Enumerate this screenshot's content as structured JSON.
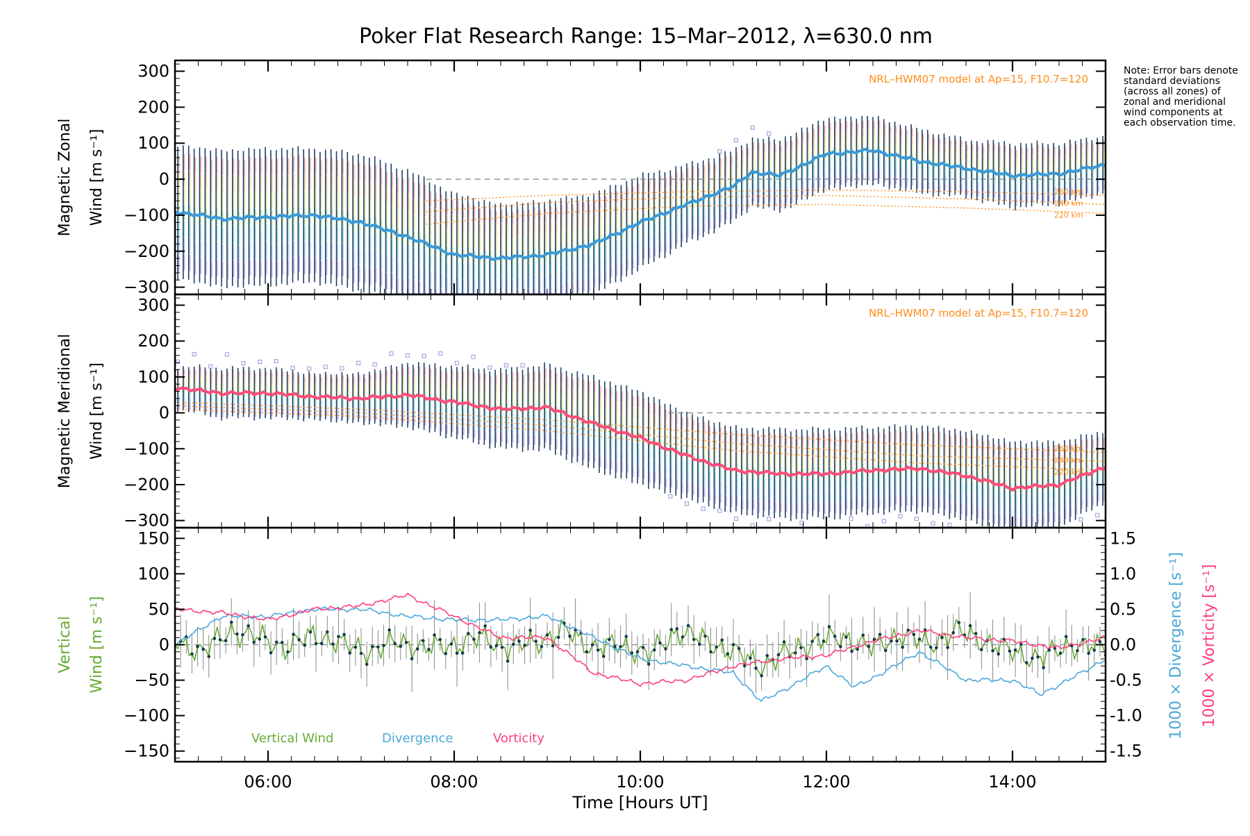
{
  "title": "Poker Flat Research Range: 15–Mar–2012, λ=630.0 nm",
  "note": "Note: Error bars denote standard deviations (across all zones) of zonal and meridional wind components at each observation time.",
  "colors": {
    "zonal_mean": "#3a9ad9",
    "meridional_mean": "#ff4d7a",
    "vertical": "#66aa33",
    "divergence": "#4aa7d9",
    "vorticity": "#ff3d7f",
    "model": "#ff8c1a",
    "errorbar": "#1f3d66",
    "outlier": "#a9a4dd"
  },
  "chart_data": [
    {
      "type": "line",
      "panel": "zonal",
      "ylabel_line1": "Magnetic Zonal",
      "ylabel_line2": "Wind [m s⁻¹]",
      "ylim": [
        -320,
        330
      ],
      "yticks": [
        300,
        200,
        100,
        0,
        -100,
        -200,
        -300
      ],
      "xlim": [
        5.0,
        15.0
      ],
      "model_label": "NRL–HWM07 model at Ap=15, F10.7=120",
      "model_alt_labels": [
        "260 km",
        "240 km",
        "220 km"
      ],
      "zero_line_from": 7.7,
      "series": [
        {
          "label": "mean",
          "x": [
            5.0,
            5.5,
            6.0,
            6.5,
            7.0,
            7.5,
            8.0,
            8.5,
            9.0,
            9.5,
            10.0,
            10.5,
            11.0,
            11.2,
            11.5,
            12.0,
            12.5,
            13.0,
            13.5,
            14.0,
            14.5,
            15.0
          ],
          "values": [
            -90,
            -110,
            -105,
            -100,
            -120,
            -160,
            -210,
            -220,
            -210,
            -180,
            -120,
            -70,
            -20,
            20,
            10,
            70,
            80,
            50,
            30,
            10,
            15,
            40
          ],
          "std": [
            185,
            190,
            190,
            185,
            190,
            185,
            170,
            150,
            150,
            140,
            130,
            110,
            100,
            95,
            100,
            100,
            95,
            90,
            80,
            90,
            85,
            80
          ]
        }
      ],
      "models": [
        {
          "alt": "260 km",
          "x": [
            7.7,
            9.0,
            10.5,
            12.0,
            13.5,
            15.0
          ],
          "values": [
            -60,
            -45,
            -35,
            -30,
            -35,
            -45
          ]
        },
        {
          "alt": "240 km",
          "x": [
            7.7,
            9.0,
            10.5,
            12.0,
            13.5,
            15.0
          ],
          "values": [
            -90,
            -65,
            -50,
            -45,
            -55,
            -70
          ]
        },
        {
          "alt": "220 km",
          "x": [
            7.7,
            9.0,
            10.5,
            12.0,
            13.5,
            15.0
          ],
          "values": [
            -125,
            -95,
            -75,
            -70,
            -80,
            -95
          ]
        }
      ]
    },
    {
      "type": "line",
      "panel": "meridional",
      "ylabel_line1": "Magnetic Meridional",
      "ylabel_line2": "Wind [m s⁻¹]",
      "ylim": [
        -320,
        330
      ],
      "yticks": [
        300,
        200,
        100,
        0,
        -100,
        -200,
        -300
      ],
      "xlim": [
        5.0,
        15.0
      ],
      "model_label": "NRL–HWM07 model at Ap=15, F10.7=120",
      "model_alt_labels": [
        "260 km",
        "240 km",
        "220 km"
      ],
      "zero_line_from": 10.3,
      "series": [
        {
          "label": "mean",
          "x": [
            5.0,
            5.5,
            6.0,
            6.5,
            7.0,
            7.5,
            8.0,
            8.5,
            9.0,
            9.5,
            10.0,
            10.5,
            11.0,
            11.5,
            12.0,
            12.5,
            13.0,
            13.5,
            14.0,
            14.5,
            15.0
          ],
          "values": [
            70,
            55,
            55,
            45,
            40,
            50,
            30,
            10,
            15,
            -30,
            -70,
            -120,
            -160,
            -170,
            -170,
            -160,
            -155,
            -175,
            -210,
            -200,
            -150
          ],
          "std": [
            60,
            70,
            70,
            65,
            70,
            90,
            100,
            110,
            120,
            130,
            130,
            120,
            120,
            125,
            125,
            120,
            120,
            125,
            130,
            120,
            100
          ]
        }
      ],
      "models": [
        {
          "alt": "260 km",
          "x": [
            5.0,
            7.0,
            9.0,
            11.0,
            13.0,
            15.0
          ],
          "values": [
            30,
            10,
            -20,
            -60,
            -90,
            -110
          ]
        },
        {
          "alt": "240 km",
          "x": [
            5.0,
            7.0,
            9.0,
            11.0,
            13.0,
            15.0
          ],
          "values": [
            20,
            0,
            -35,
            -85,
            -120,
            -135
          ]
        },
        {
          "alt": "220 km",
          "x": [
            5.0,
            7.0,
            9.0,
            11.0,
            13.0,
            15.0
          ],
          "values": [
            10,
            -10,
            -50,
            -105,
            -140,
            -160
          ]
        }
      ]
    },
    {
      "type": "line",
      "panel": "vertical",
      "ylabel_line1": "Vertical",
      "ylabel_line2": "Wind [m s⁻¹]",
      "ylabel_right_div": "1000 × Divergence [s⁻¹]",
      "ylabel_right_vort": "1000 × Vorticity [s⁻¹]",
      "ylim": [
        -165,
        165
      ],
      "yticks": [
        150,
        100,
        50,
        0,
        -50,
        -100,
        -150
      ],
      "y2lim": [
        -1.65,
        1.65
      ],
      "y2ticks": [
        1.5,
        1.0,
        0.5,
        0.0,
        -0.5,
        -1.0,
        -1.5
      ],
      "xlim": [
        5.0,
        15.0
      ],
      "xticks": [
        6,
        8,
        10,
        12,
        14
      ],
      "xticklabels": [
        "06:00",
        "08:00",
        "10:00",
        "12:00",
        "14:00"
      ],
      "xlabel": "Time [Hours UT]",
      "legend": [
        "Vertical Wind",
        "Divergence",
        "Vorticity"
      ],
      "series": [
        {
          "name": "Vertical Wind",
          "x": [
            5.0,
            5.3,
            5.6,
            5.9,
            6.2,
            6.5,
            6.8,
            7.1,
            7.4,
            7.7,
            8.0,
            8.3,
            8.6,
            8.9,
            9.2,
            9.5,
            9.8,
            10.1,
            10.4,
            10.7,
            11.0,
            11.3,
            11.6,
            11.9,
            12.2,
            12.5,
            12.8,
            13.1,
            13.4,
            13.7,
            14.0,
            14.3,
            14.6,
            15.0
          ],
          "values": [
            5,
            -10,
            20,
            10,
            -5,
            15,
            0,
            -10,
            5,
            -5,
            0,
            10,
            -5,
            5,
            20,
            -5,
            0,
            -15,
            20,
            5,
            -10,
            -30,
            -10,
            5,
            10,
            -5,
            15,
            0,
            20,
            5,
            -10,
            -20,
            0,
            -5
          ]
        },
        {
          "name": "Divergence",
          "x": [
            5.0,
            5.5,
            6.0,
            6.5,
            7.0,
            7.5,
            8.0,
            8.5,
            9.0,
            9.5,
            10.0,
            10.5,
            11.0,
            11.3,
            11.6,
            12.0,
            12.3,
            12.6,
            13.0,
            13.5,
            14.0,
            14.3,
            14.6,
            15.0
          ],
          "values": [
            0.0,
            0.4,
            0.4,
            0.5,
            0.5,
            0.4,
            0.35,
            0.35,
            0.4,
            0.1,
            -0.2,
            -0.3,
            -0.4,
            -0.8,
            -0.6,
            -0.3,
            -0.6,
            -0.4,
            -0.1,
            -0.5,
            -0.5,
            -0.7,
            -0.5,
            -0.2
          ]
        },
        {
          "name": "Vorticity",
          "x": [
            5.0,
            5.5,
            6.0,
            6.5,
            7.0,
            7.5,
            8.0,
            8.5,
            9.0,
            9.5,
            10.0,
            10.5,
            11.0,
            11.5,
            12.0,
            12.5,
            13.0,
            13.5,
            14.0,
            14.5,
            15.0
          ],
          "values": [
            0.5,
            0.45,
            0.35,
            0.5,
            0.55,
            0.7,
            0.4,
            0.1,
            0.1,
            -0.4,
            -0.55,
            -0.5,
            -0.3,
            -0.2,
            -0.15,
            0.05,
            0.2,
            0.1,
            0.05,
            -0.05,
            0.1
          ]
        }
      ]
    }
  ]
}
